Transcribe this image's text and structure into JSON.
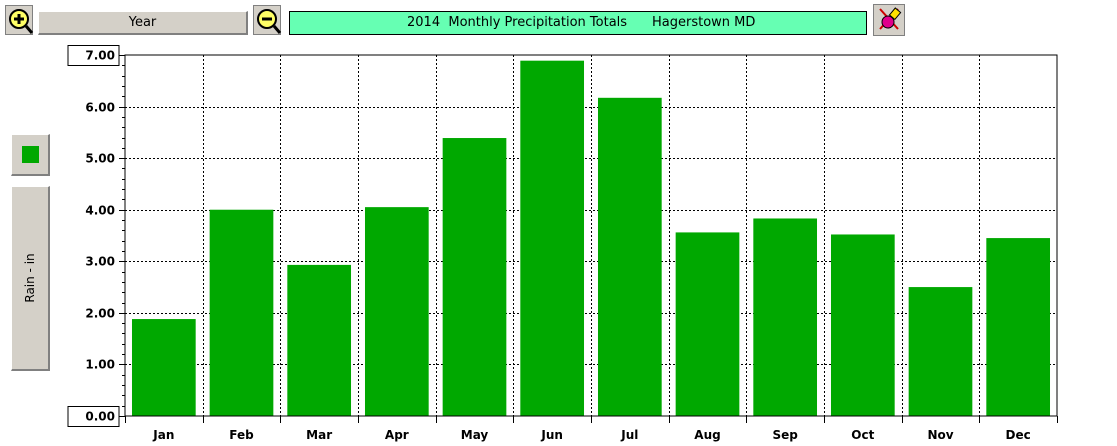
{
  "toolbar": {
    "zoom_in_icon": "zoom-in-magnifier-icon",
    "zoom_out_icon": "zoom-out-magnifier-icon",
    "year_label": "Year",
    "title_text": "2014  Monthly Precipitation Totals",
    "title_location": "Hagerstown MD",
    "tool_icon": "paint-tool-icon",
    "title_bg": "#66ffb3"
  },
  "sidebar": {
    "series_color": "#00a800",
    "ylabel": "Rain - in"
  },
  "chart_data": {
    "type": "bar",
    "title": "2014  Monthly Precipitation Totals",
    "subtitle": "Hagerstown MD",
    "categories": [
      "Jan",
      "Feb",
      "Mar",
      "Apr",
      "May",
      "Jun",
      "Jul",
      "Aug",
      "Sep",
      "Oct",
      "Nov",
      "Dec"
    ],
    "values": [
      1.88,
      4.0,
      2.93,
      4.05,
      5.39,
      6.89,
      6.17,
      3.56,
      3.83,
      3.52,
      2.5,
      3.45
    ],
    "ylabel": "Rain - in",
    "xlabel": "",
    "ylim": [
      0,
      7
    ],
    "yticks": [
      "0.00",
      "1.00",
      "2.00",
      "3.00",
      "4.00",
      "5.00",
      "6.00",
      "7.00"
    ],
    "grid": true,
    "bar_color": "#00a800"
  }
}
